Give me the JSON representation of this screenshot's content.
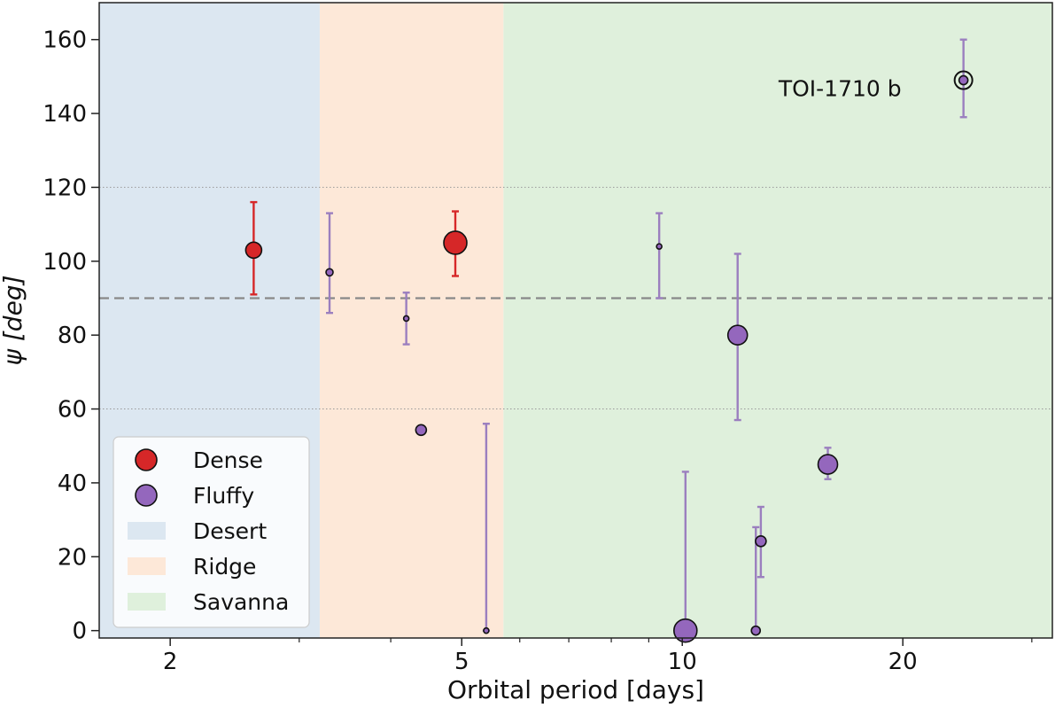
{
  "chart_data": {
    "type": "scatter",
    "xlabel": "Orbital period [days]",
    "ylabel": "ψ [deg]",
    "xscale": "log",
    "xlim": [
      1.6,
      32
    ],
    "ylim": [
      -2,
      170
    ],
    "xticks": [
      2,
      5,
      10,
      20
    ],
    "yticks": [
      0,
      20,
      40,
      60,
      80,
      100,
      120,
      140,
      160
    ],
    "dotted_hlines": [
      60,
      120
    ],
    "dashed_hline": 90,
    "regions": [
      {
        "name": "Desert",
        "from": 1.6,
        "to": 3.2,
        "color": "#dce7f1"
      },
      {
        "name": "Ridge",
        "from": 3.2,
        "to": 5.7,
        "color": "#fde8d8"
      },
      {
        "name": "Savanna",
        "from": 5.7,
        "to": 32,
        "color": "#dff0dc"
      }
    ],
    "series": [
      {
        "name": "Dense",
        "color": "#d62728",
        "errcolor": "#d62728",
        "points": [
          {
            "x": 2.6,
            "y": 103,
            "ylow": 91,
            "yhigh": 116,
            "size": 9
          },
          {
            "x": 4.9,
            "y": 105,
            "ylow": 96,
            "yhigh": 113.5,
            "size": 13
          }
        ]
      },
      {
        "name": "Fluffy",
        "color": "#9467bd",
        "errcolor": "#9b7fbf",
        "points": [
          {
            "x": 3.3,
            "y": 97,
            "ylow": 86,
            "yhigh": 113,
            "size": 4
          },
          {
            "x": 4.2,
            "y": 84.5,
            "ylow": 77.5,
            "yhigh": 91.5,
            "size": 3
          },
          {
            "x": 4.4,
            "y": 54.3,
            "ylow": null,
            "yhigh": null,
            "size": 6
          },
          {
            "x": 5.4,
            "y": 0,
            "ylow": 0,
            "yhigh": 56,
            "size": 3
          },
          {
            "x": 9.3,
            "y": 104,
            "ylow": 90,
            "yhigh": 113,
            "size": 3
          },
          {
            "x": 10.1,
            "y": 0,
            "ylow": 0,
            "yhigh": 43,
            "size": 13
          },
          {
            "x": 11.9,
            "y": 80,
            "ylow": 57,
            "yhigh": 102,
            "size": 11
          },
          {
            "x": 12.6,
            "y": 0,
            "ylow": 0,
            "yhigh": 28,
            "size": 5
          },
          {
            "x": 12.8,
            "y": 24.2,
            "ylow": 14.5,
            "yhigh": 33.5,
            "size": 6
          },
          {
            "x": 15.8,
            "y": 45,
            "ylow": 41,
            "yhigh": 49.5,
            "size": 11
          },
          {
            "x": 24.2,
            "y": 149,
            "ylow": 139,
            "yhigh": 160,
            "size": 5,
            "ring": true
          }
        ]
      }
    ],
    "annotations": [
      {
        "text": "TOI-1710 b",
        "x": 24.2,
        "y": 149
      }
    ],
    "legend": {
      "position": "lower-left",
      "entries": [
        {
          "label": "Dense",
          "kind": "marker",
          "color": "#d62728"
        },
        {
          "label": "Fluffy",
          "kind": "marker",
          "color": "#9467bd"
        },
        {
          "label": "Desert",
          "kind": "patch",
          "color": "#dce7f1"
        },
        {
          "label": "Ridge",
          "kind": "patch",
          "color": "#fde8d8"
        },
        {
          "label": "Savanna",
          "kind": "patch",
          "color": "#dff0dc"
        }
      ]
    }
  }
}
